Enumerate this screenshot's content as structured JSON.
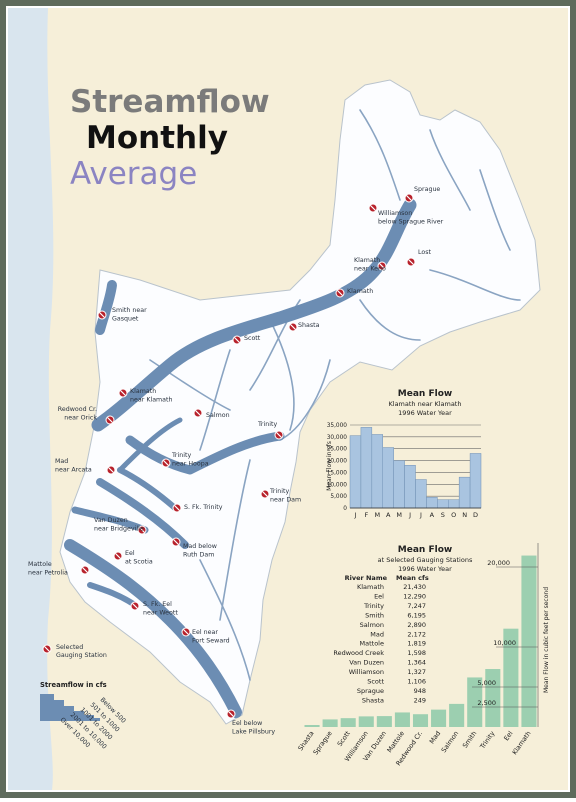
{
  "title": {
    "line1": "Streamflow",
    "line2": "Monthly",
    "line3": "Average"
  },
  "stations": [
    {
      "label": [
        "Sprague"
      ]
    },
    {
      "label": [
        "Williamson",
        "below Sprague River"
      ]
    },
    {
      "label": [
        "Lost"
      ]
    },
    {
      "label": [
        "Klamath",
        "near Keno"
      ]
    },
    {
      "label": [
        "Klamath"
      ]
    },
    {
      "label": [
        "Shasta"
      ]
    },
    {
      "label": [
        "Scott"
      ]
    },
    {
      "label": [
        "Smith near",
        "Gasquet"
      ]
    },
    {
      "label": [
        "Klamath",
        "near Klamath"
      ]
    },
    {
      "label": [
        "Salmon"
      ]
    },
    {
      "label": [
        "Redwood Cr.",
        "near Orick"
      ]
    },
    {
      "label": [
        "Trinity"
      ]
    },
    {
      "label": [
        "Trinity",
        "near Hoopa"
      ]
    },
    {
      "label": [
        "Mad",
        "near Arcata"
      ]
    },
    {
      "label": [
        "S. Fk. Trinity"
      ]
    },
    {
      "label": [
        "Trinity",
        "near Dam"
      ]
    },
    {
      "label": [
        "Van Duzen",
        "near Bridgeville"
      ]
    },
    {
      "label": [
        "Mad below",
        "Ruth Dam"
      ]
    },
    {
      "label": [
        "Eel",
        "at Scotia"
      ]
    },
    {
      "label": [
        "Mattole",
        "near Petrolia"
      ]
    },
    {
      "label": [
        "S. Fk. Eel",
        "near Weott"
      ]
    },
    {
      "label": [
        "Eel near",
        "Fort Seward"
      ]
    },
    {
      "label": [
        "Eel below",
        "Lake Pillsbury"
      ]
    }
  ],
  "legend": {
    "station": [
      "Selected",
      "Gauging Station"
    ],
    "flow_title": "Streamflow in cfs",
    "flow_classes": [
      "Below 500",
      "501 to 1000",
      "1001 to 2000",
      "2001 to 10,000",
      "Over 10,000"
    ]
  },
  "chart_data": [
    {
      "type": "bar",
      "title": "Mean Flow",
      "subtitle": [
        "Klamath near Klamath",
        "1996 Water Year"
      ],
      "y_label": "Mean Flow in cfs",
      "categories": [
        "J",
        "F",
        "M",
        "A",
        "M",
        "J",
        "J",
        "A",
        "S",
        "O",
        "N",
        "D"
      ],
      "values": [
        30500,
        34000,
        31000,
        25500,
        20000,
        18000,
        12000,
        4500,
        3500,
        3500,
        13000,
        23000
      ],
      "color": "#a9c4e0",
      "ylim": [
        0,
        35000
      ],
      "yticks": [
        0,
        {
          "value": 5000,
          "label": "5,000"
        },
        {
          "value": 10000,
          "label": "10,000"
        },
        {
          "value": 15000,
          "label": "15,000"
        },
        {
          "value": 20000,
          "label": "20,000"
        },
        {
          "value": 25000,
          "label": "25,000"
        },
        {
          "value": 30000,
          "label": "30,000"
        },
        {
          "value": 35000,
          "label": "35,000"
        }
      ],
      "grid": true
    },
    {
      "type": "bar",
      "title": "Mean Flow",
      "subtitle": [
        "at Selected Gauging Stations",
        "1996 Water Year"
      ],
      "y_label": "Mean Flow in cubic feet per second",
      "categories": [
        "Shasta",
        "Sprague",
        "Scott",
        "Williamson",
        "Van Duzen",
        "Mattole",
        "Redwood Cr.",
        "Mad",
        "Salmon",
        "Smith",
        "Trinity",
        "Eel",
        "Klamath"
      ],
      "values": [
        249,
        948,
        1106,
        1327,
        1364,
        1819,
        1598,
        2172,
        2890,
        6195,
        7247,
        12290,
        21430
      ],
      "color": "#9ccfb0",
      "ylim": [
        0,
        23000
      ],
      "yticks": [
        {
          "value": 2500,
          "label": "2,500"
        },
        {
          "value": 5000,
          "label": "5,000"
        },
        {
          "value": 10000,
          "label": "10,000"
        },
        {
          "value": 20000,
          "label": "20,000"
        }
      ],
      "grid": false
    }
  ],
  "table": {
    "header": [
      "River Name",
      "Mean cfs"
    ],
    "rows": [
      [
        "Klamath",
        "21,430"
      ],
      [
        "Eel",
        "12,290"
      ],
      [
        "Trinity",
        "7,247"
      ],
      [
        "Smith",
        "6,195"
      ],
      [
        "Salmon",
        "2,890"
      ],
      [
        "Mad",
        "2,172"
      ],
      [
        "Mattole",
        "1,819"
      ],
      [
        "Redwood Creek",
        "1,598"
      ],
      [
        "Van Duzen",
        "1,364"
      ],
      [
        "Williamson",
        "1,327"
      ],
      [
        "Scott",
        "1,106"
      ],
      [
        "Sprague",
        "948"
      ],
      [
        "Shasta",
        "249"
      ]
    ]
  }
}
